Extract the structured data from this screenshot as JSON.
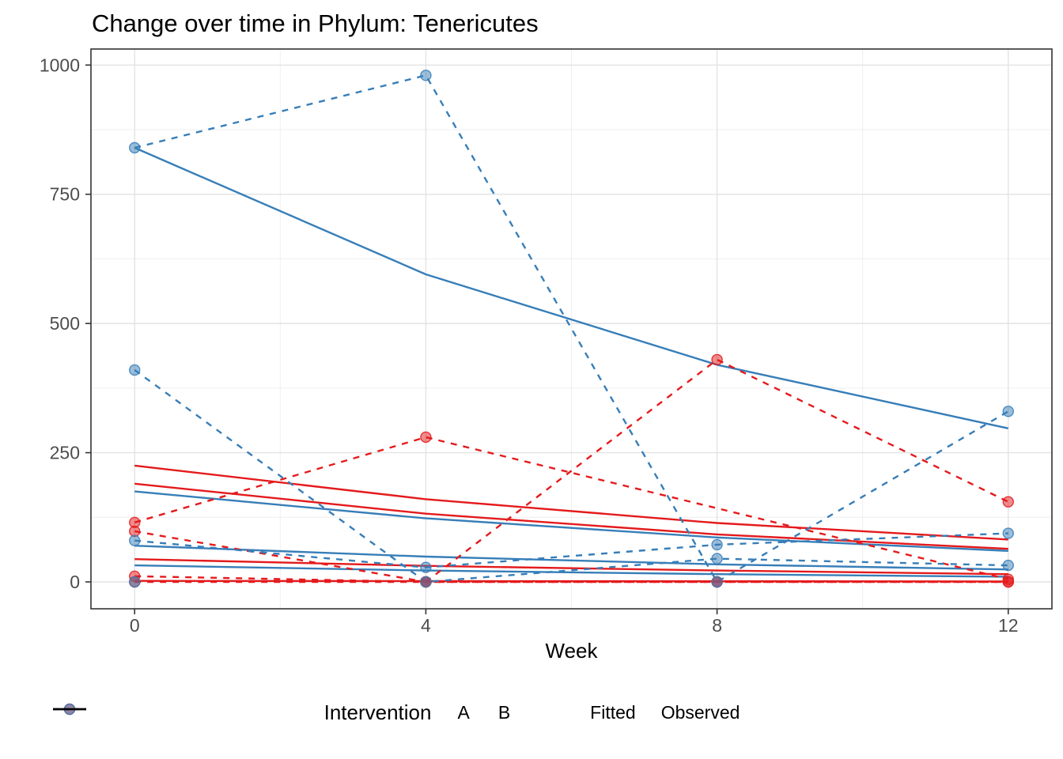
{
  "chart_data": {
    "type": "line",
    "title": "Change over time in Phylum: Tenericutes",
    "xlabel": "Week",
    "ylabel": "",
    "x_ticks": [
      0,
      4,
      8,
      12
    ],
    "y_ticks": [
      0,
      250,
      500,
      750,
      1000
    ],
    "x_minor": [
      2,
      6,
      10
    ],
    "y_minor": [
      125,
      375,
      625,
      875
    ],
    "xlim": [
      -0.6,
      12.6
    ],
    "ylim": [
      -52,
      1031
    ],
    "grid": "major+minor",
    "legend_position": "bottom",
    "group_colors": {
      "A": "#e41a1c",
      "B": "#377eb8"
    },
    "series": [
      {
        "id": "A1",
        "intervention": "A",
        "observed": [
          [
            0,
            115
          ],
          [
            4,
            280
          ],
          [
            12,
            5
          ]
        ],
        "fitted": [
          [
            0,
            225
          ],
          [
            4,
            160
          ],
          [
            8,
            114
          ],
          [
            12,
            82
          ]
        ]
      },
      {
        "id": "A2",
        "intervention": "A",
        "observed": [
          [
            0,
            11
          ],
          [
            4,
            0
          ],
          [
            8,
            430
          ],
          [
            12,
            155
          ]
        ],
        "fitted": [
          [
            0,
            190
          ],
          [
            4,
            132
          ],
          [
            8,
            92
          ],
          [
            12,
            64
          ]
        ]
      },
      {
        "id": "A3",
        "intervention": "A",
        "observed": [
          [
            0,
            98
          ],
          [
            4,
            0
          ],
          [
            8,
            0
          ],
          [
            12,
            0
          ]
        ],
        "fitted": [
          [
            0,
            44
          ],
          [
            4,
            31
          ],
          [
            8,
            22
          ],
          [
            12,
            15
          ]
        ]
      },
      {
        "id": "A4",
        "intervention": "A",
        "observed": [
          [
            0,
            0
          ],
          [
            4,
            0
          ],
          [
            8,
            0
          ],
          [
            12,
            0
          ]
        ],
        "fitted": [
          [
            0,
            2
          ],
          [
            4,
            1.5
          ],
          [
            8,
            1.2
          ],
          [
            12,
            1
          ]
        ]
      },
      {
        "id": "B1",
        "intervention": "B",
        "observed": [
          [
            0,
            840
          ],
          [
            4,
            980
          ],
          [
            8,
            0
          ],
          [
            12,
            330
          ]
        ],
        "fitted": [
          [
            0,
            840
          ],
          [
            4,
            595
          ],
          [
            8,
            420
          ],
          [
            12,
            297
          ]
        ]
      },
      {
        "id": "B2",
        "intervention": "B",
        "observed": [
          [
            0,
            410
          ],
          [
            4,
            0
          ],
          [
            8,
            45
          ],
          [
            12,
            32
          ]
        ],
        "fitted": [
          [
            0,
            175
          ],
          [
            4,
            123
          ],
          [
            8,
            86
          ],
          [
            12,
            60
          ]
        ]
      },
      {
        "id": "B3",
        "intervention": "B",
        "observed": [
          [
            0,
            80
          ],
          [
            4,
            28
          ],
          [
            8,
            72
          ],
          [
            12,
            94
          ]
        ],
        "fitted": [
          [
            0,
            70
          ],
          [
            4,
            49
          ],
          [
            8,
            34
          ],
          [
            12,
            24
          ]
        ]
      },
      {
        "id": "B4",
        "intervention": "B",
        "observed": [
          [
            0,
            0
          ]
        ],
        "fitted": [
          [
            0,
            32
          ],
          [
            4,
            22
          ],
          [
            8,
            15
          ],
          [
            12,
            10
          ]
        ]
      }
    ]
  },
  "legend": {
    "title": "Intervention",
    "groups": [
      {
        "label": "A",
        "color": "#e41a1c"
      },
      {
        "label": "B",
        "color": "#377eb8"
      }
    ],
    "linetypes": [
      {
        "label": "Fitted",
        "dash": "solid"
      },
      {
        "label": "Observed",
        "dash": "dashed"
      }
    ]
  },
  "style": {
    "grid_major_color": "#e3e3e3",
    "grid_minor_color": "#f0f0f0",
    "panel_border_color": "#333333",
    "tick_color": "#333333",
    "tick_label_color": "#4d4d4d",
    "line_key_color": "#000000"
  }
}
